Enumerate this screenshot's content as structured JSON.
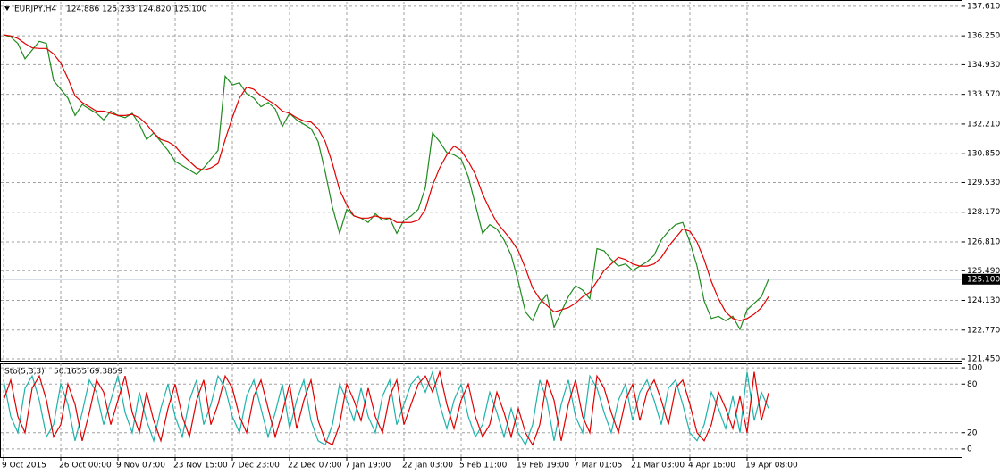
{
  "chart_data": [
    {
      "type": "line",
      "title": "EURJPY,H4",
      "quote": "124.886 125.233 124.820 125.100",
      "categories": [
        "9 Oct 2015",
        null,
        null,
        null,
        null,
        null,
        null,
        null,
        "26 Oct 00:00",
        null,
        null,
        null,
        null,
        null,
        null,
        null,
        "9 Nov 07:00",
        null,
        null,
        null,
        null,
        null,
        null,
        null,
        "23 Nov 15:00",
        null,
        null,
        null,
        null,
        null,
        null,
        null,
        "7 Dec 23:00",
        null,
        null,
        null,
        null,
        null,
        null,
        null,
        "22 Dec 07:00",
        null,
        null,
        null,
        null,
        null,
        null,
        null,
        "7 Jan 19:00",
        null,
        null,
        null,
        null,
        null,
        null,
        null,
        "22 Jan 03:00",
        null,
        null,
        null,
        null,
        null,
        null,
        null,
        "5 Feb 11:00",
        null,
        null,
        null,
        null,
        null,
        null,
        null,
        "19 Feb 19:00",
        null,
        null,
        null,
        null,
        null,
        null,
        null,
        "7 Mar 01:05",
        null,
        null,
        null,
        null,
        null,
        null,
        null,
        "21 Mar 03:00",
        null,
        null,
        null,
        null,
        null,
        null,
        null,
        "4 Apr 16:00",
        null,
        null,
        null,
        null,
        null,
        null,
        null,
        "19 Apr 08:00",
        null,
        null,
        null
      ],
      "series": [
        {
          "color": "#1f8a1f",
          "values": [
            136.3,
            136.2,
            135.9,
            135.2,
            135.6,
            136.0,
            135.9,
            134.2,
            133.8,
            133.4,
            132.6,
            133.1,
            132.9,
            132.7,
            132.4,
            132.8,
            132.6,
            132.5,
            132.7,
            132.2,
            131.5,
            131.8,
            131.4,
            131.0,
            130.5,
            130.3,
            130.1,
            129.9,
            130.2,
            130.6,
            131.0,
            134.4,
            134.0,
            134.1,
            133.6,
            133.4,
            133.0,
            133.2,
            132.9,
            132.1,
            132.7,
            132.4,
            132.2,
            132.0,
            131.4,
            130.0,
            128.4,
            127.2,
            128.3,
            128.0,
            127.9,
            127.7,
            128.1,
            127.8,
            127.9,
            127.2,
            127.8,
            128.0,
            128.3,
            129.3,
            131.8,
            131.4,
            130.9,
            130.8,
            130.6,
            129.8,
            128.5,
            127.2,
            127.6,
            127.4,
            126.9,
            126.2,
            125.0,
            123.6,
            123.2,
            124.0,
            124.4,
            122.9,
            123.6,
            124.3,
            124.8,
            124.6,
            124.2,
            126.5,
            126.4,
            126.0,
            125.7,
            125.8,
            125.5,
            125.7,
            125.9,
            126.2,
            126.9,
            127.3,
            127.6,
            127.7,
            126.8,
            125.7,
            124.1,
            123.3,
            123.4,
            123.2,
            123.4,
            122.8,
            123.7,
            124.0,
            124.3,
            125.1
          ]
        },
        {
          "color": "#e00000",
          "values": [
            136.3,
            136.25,
            136.13,
            135.9,
            135.7,
            135.67,
            135.67,
            135.42,
            135.0,
            134.3,
            133.5,
            133.2,
            133.0,
            132.8,
            132.8,
            132.7,
            132.6,
            132.6,
            132.65,
            132.5,
            132.2,
            131.8,
            131.5,
            131.4,
            131.2,
            130.8,
            130.5,
            130.2,
            130.1,
            130.2,
            130.4,
            131.5,
            132.5,
            133.4,
            133.9,
            133.8,
            133.5,
            133.3,
            133.1,
            132.8,
            132.7,
            132.5,
            132.35,
            132.3,
            132.0,
            131.4,
            130.4,
            129.2,
            128.5,
            128.0,
            127.9,
            127.9,
            128.0,
            127.9,
            127.9,
            127.7,
            127.7,
            127.7,
            127.8,
            128.3,
            129.4,
            130.2,
            130.8,
            131.2,
            131.0,
            130.5,
            129.9,
            129.0,
            128.3,
            127.7,
            127.3,
            126.9,
            126.4,
            125.6,
            124.7,
            124.2,
            123.9,
            123.6,
            123.7,
            123.8,
            124.0,
            124.3,
            124.5,
            125.0,
            125.5,
            125.8,
            126.1,
            126.0,
            125.8,
            125.7,
            125.7,
            125.8,
            126.1,
            126.6,
            127.0,
            127.4,
            127.3,
            126.8,
            126.0,
            125.0,
            124.2,
            123.6,
            123.3,
            123.2,
            123.3,
            123.5,
            123.8,
            124.3
          ]
        }
      ],
      "current_price": {
        "value": 125.1,
        "label": "125.100"
      },
      "ylim": [
        121.37,
        137.81
      ],
      "yticks": [
        {
          "value": 137.61,
          "label": "137.610"
        },
        {
          "value": 136.25,
          "label": "136.250"
        },
        {
          "value": 134.93,
          "label": "134.930"
        },
        {
          "value": 133.57,
          "label": "133.570"
        },
        {
          "value": 132.21,
          "label": "132.210"
        },
        {
          "value": 130.85,
          "label": "130.850"
        },
        {
          "value": 129.53,
          "label": "129.530"
        },
        {
          "value": 128.17,
          "label": "128.170"
        },
        {
          "value": 126.81,
          "label": "126.810"
        },
        {
          "value": 125.49,
          "label": "125.490"
        },
        {
          "value": 124.13,
          "label": "124.130"
        },
        {
          "value": 122.77,
          "label": "122.770"
        },
        {
          "value": 121.45,
          "label": "121.450"
        }
      ],
      "grid": true
    },
    {
      "type": "line",
      "title": "Sto(5,3,3)",
      "quote": "50.1655 69.3859",
      "series": [
        {
          "color": "#20b2aa",
          "values": [
            85,
            40,
            20,
            75,
            90,
            60,
            15,
            30,
            80,
            55,
            10,
            45,
            85,
            70,
            30,
            60,
            90,
            45,
            20,
            70,
            35,
            10,
            50,
            80,
            40,
            15,
            60,
            85,
            30,
            55,
            90,
            75,
            40,
            20,
            65,
            85,
            50,
            15,
            45,
            80,
            25,
            60,
            85,
            35,
            10,
            5,
            30,
            80,
            60,
            35,
            75,
            40,
            20,
            65,
            85,
            30,
            55,
            80,
            90,
            70,
            95,
            55,
            25,
            60,
            80,
            40,
            15,
            30,
            70,
            45,
            15,
            50,
            20,
            5,
            30,
            85,
            60,
            10,
            55,
            85,
            40,
            20,
            90,
            75,
            45,
            20,
            60,
            80,
            35,
            70,
            85,
            60,
            30,
            75,
            85,
            55,
            20,
            10,
            30,
            70,
            50,
            25,
            65,
            20,
            95,
            35,
            70,
            50
          ]
        },
        {
          "color": "#e00000",
          "values": [
            60,
            85,
            40,
            20,
            75,
            90,
            60,
            15,
            30,
            80,
            55,
            10,
            45,
            85,
            70,
            30,
            60,
            90,
            45,
            20,
            70,
            35,
            10,
            50,
            80,
            40,
            15,
            60,
            85,
            30,
            55,
            90,
            75,
            40,
            20,
            65,
            85,
            50,
            15,
            45,
            80,
            25,
            60,
            85,
            35,
            10,
            5,
            30,
            80,
            60,
            35,
            75,
            40,
            20,
            65,
            85,
            30,
            55,
            80,
            90,
            70,
            95,
            55,
            25,
            60,
            80,
            40,
            15,
            30,
            70,
            45,
            15,
            50,
            20,
            5,
            30,
            85,
            60,
            10,
            55,
            85,
            40,
            20,
            90,
            75,
            45,
            20,
            60,
            80,
            35,
            70,
            85,
            60,
            30,
            75,
            85,
            55,
            20,
            10,
            30,
            70,
            50,
            25,
            65,
            20,
            95,
            35,
            69
          ]
        }
      ],
      "ylim": [
        -10,
        105.6
      ],
      "yticks": [
        100,
        80,
        20,
        0
      ],
      "grid": true
    }
  ]
}
